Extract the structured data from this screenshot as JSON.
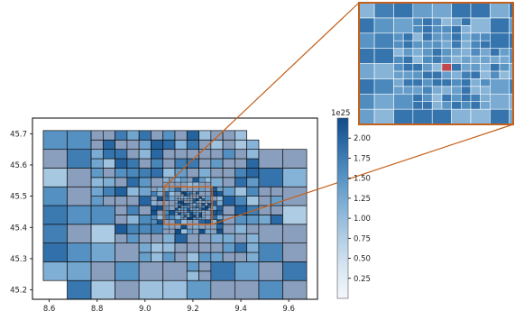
{
  "chart_data": {
    "type": "heatmap",
    "title": "",
    "xlabel": "",
    "ylabel": "",
    "x_ticks": [
      8.6,
      8.8,
      9.0,
      9.2,
      9.4,
      9.6
    ],
    "y_ticks": [
      45.2,
      45.3,
      45.4,
      45.5,
      45.6,
      45.7
    ],
    "xlim": [
      8.53,
      9.72
    ],
    "ylim": [
      45.17,
      45.75
    ],
    "colorbar": {
      "exponent_label": "1e25",
      "ticks": [
        0.25,
        0.5,
        0.75,
        1.0,
        1.25,
        1.5,
        1.75,
        2.0
      ],
      "range": [
        0.0,
        2.25
      ],
      "colors": [
        "#f4f7fb",
        "#d8e6f2",
        "#b0cde4",
        "#83b1d6",
        "#5591c2",
        "#2e6da8",
        "#0f4c8a"
      ]
    },
    "mask_color": "#8a9fbd",
    "highlight_cell_color": "#c1474e",
    "zoom_box": {
      "lon": [
        9.08,
        9.28
      ],
      "lat": [
        45.41,
        45.53
      ],
      "color": "#c4601b"
    },
    "grid_levels": [
      {
        "level": 0,
        "lon_step": 0.1,
        "lat_step": 0.06,
        "extent": "whole"
      },
      {
        "level": 1,
        "lon_step": 0.05,
        "lat_step": 0.03,
        "extent": "urban"
      },
      {
        "level": 2,
        "lon_step": 0.025,
        "lat_step": 0.015,
        "extent": "core"
      },
      {
        "level": 3,
        "lon_step": 0.0125,
        "lat_step": 0.0075,
        "extent": "center"
      }
    ]
  }
}
